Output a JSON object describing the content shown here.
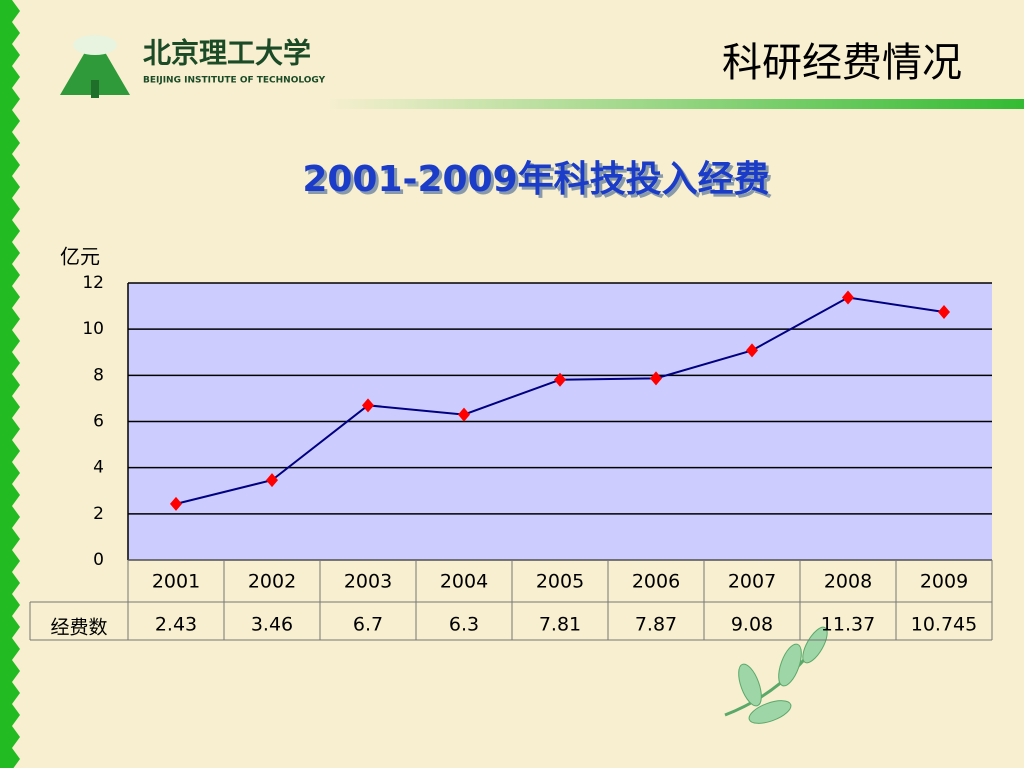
{
  "header": {
    "school_name": "北京理工大学",
    "school_name_en": "BEIJING INSTITUTE OF TECHNOLOGY",
    "slide_title": "科研经费情况"
  },
  "chart_data": {
    "type": "line",
    "title": "2001-2009年科技投入经费",
    "y_axis_label": "亿元",
    "categories": [
      "2001",
      "2002",
      "2003",
      "2004",
      "2005",
      "2006",
      "2007",
      "2008",
      "2009"
    ],
    "series": [
      {
        "name": "经费数",
        "color": "#000080",
        "marker_color": "#ff0000",
        "values": [
          2.43,
          3.46,
          6.7,
          6.3,
          7.81,
          7.87,
          9.08,
          11.37,
          10.745
        ]
      }
    ],
    "ylim": [
      0,
      12
    ],
    "yticks": [
      0,
      2,
      4,
      6,
      8,
      10,
      12
    ],
    "grid": true,
    "data_table": true
  }
}
